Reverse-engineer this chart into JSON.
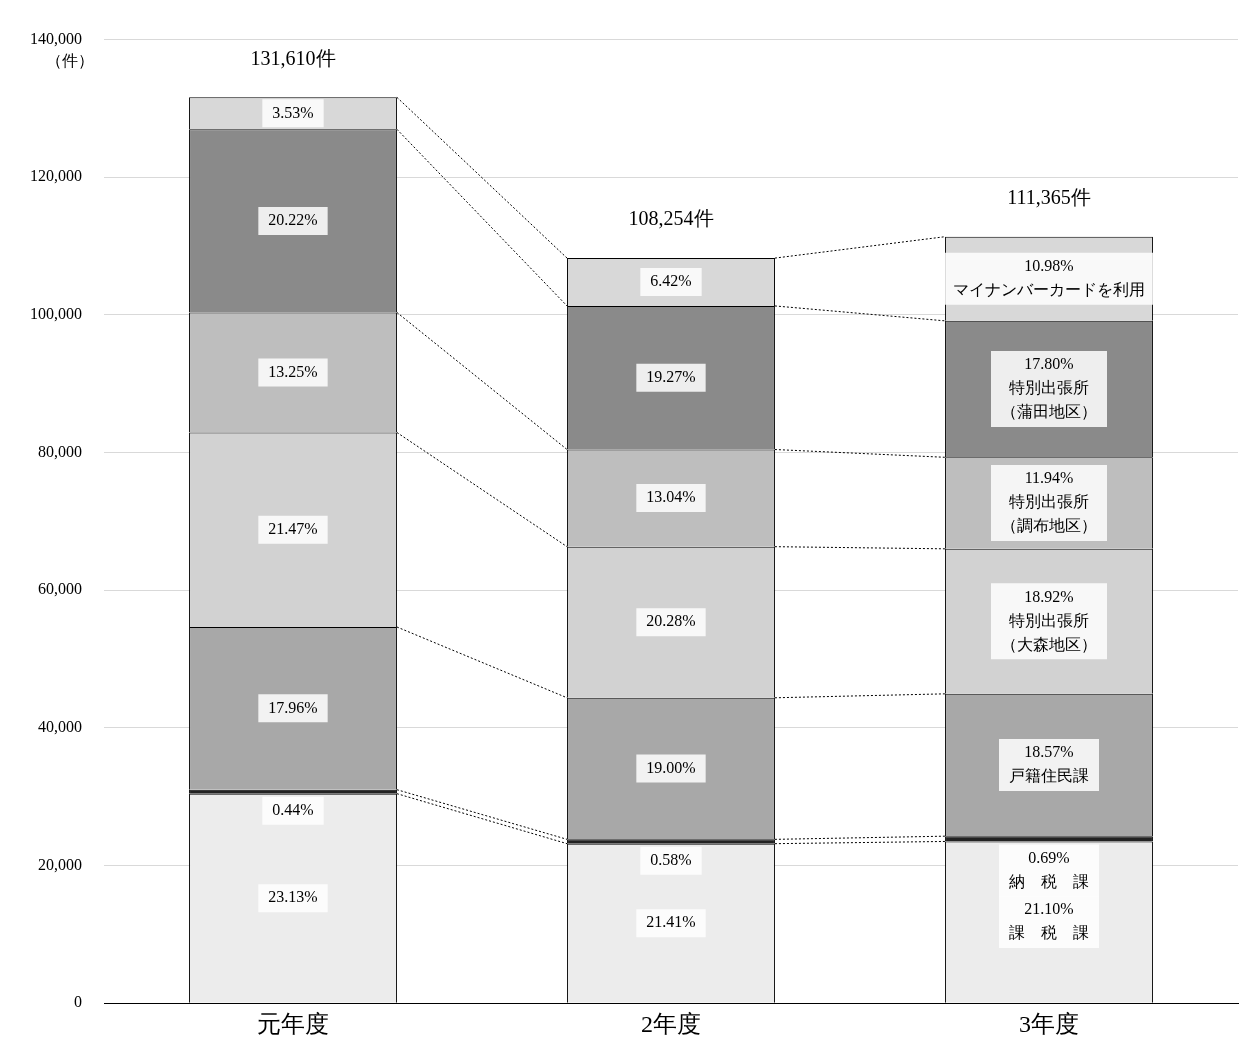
{
  "chart_data": {
    "type": "bar",
    "stacked": true,
    "ylabel": "（件）",
    "categories": [
      "元年度",
      "2年度",
      "3年度"
    ],
    "series": [
      {
        "name": "課　税　課",
        "color": "#ececec",
        "values": [
          30441,
          23177,
          23498
        ]
      },
      {
        "name": "納　税　課",
        "color": "#222222",
        "values": [
          579,
          628,
          768
        ]
      },
      {
        "name": "戸籍住民課",
        "color": "#a8a8a8",
        "values": [
          23637,
          20568,
          20680
        ]
      },
      {
        "name": "特別出張所（大森地区）",
        "color": "#d2d2d2",
        "values": [
          28257,
          21954,
          21070
        ]
      },
      {
        "name": "特別出張所（調布地区）",
        "color": "#bebebe",
        "values": [
          17438,
          14116,
          13297
        ]
      },
      {
        "name": "特別出張所（蒲田地区）",
        "color": "#8a8a8a",
        "values": [
          26612,
          20861,
          19823
        ]
      },
      {
        "name": "マイナンバーカードを利用",
        "color": "#d8d8d8",
        "values": [
          4646,
          6950,
          12228
        ]
      }
    ],
    "annotations": [
      "23.13%",
      "0.44%",
      "17.96%",
      "21.47%",
      "13.25%",
      "20.22%",
      "3.53%",
      "21.41%",
      "0.58%",
      "19.00%",
      "20.28%",
      "13.04%",
      "19.27%",
      "6.42%",
      "21.10%",
      "0.69%",
      "18.57%",
      "18.92%",
      "11.94%",
      "17.80%",
      "10.98%"
    ],
    "totals": [
      "131,610件",
      "108,254件",
      "111,365件"
    ],
    "ylim": [
      0,
      140000
    ],
    "yticks": [
      0,
      {
        "value": 20000,
        "label": "20,000"
      },
      {
        "value": 40000,
        "label": "40,000"
      },
      {
        "value": 60000,
        "label": "60,000"
      },
      {
        "value": 80000,
        "label": "80,000"
      },
      {
        "value": 100000,
        "label": "100,000"
      },
      {
        "value": 120000,
        "label": "120,000"
      },
      {
        "value": 140000,
        "label": "140,000"
      }
    ],
    "grid": "y",
    "legend": false
  }
}
